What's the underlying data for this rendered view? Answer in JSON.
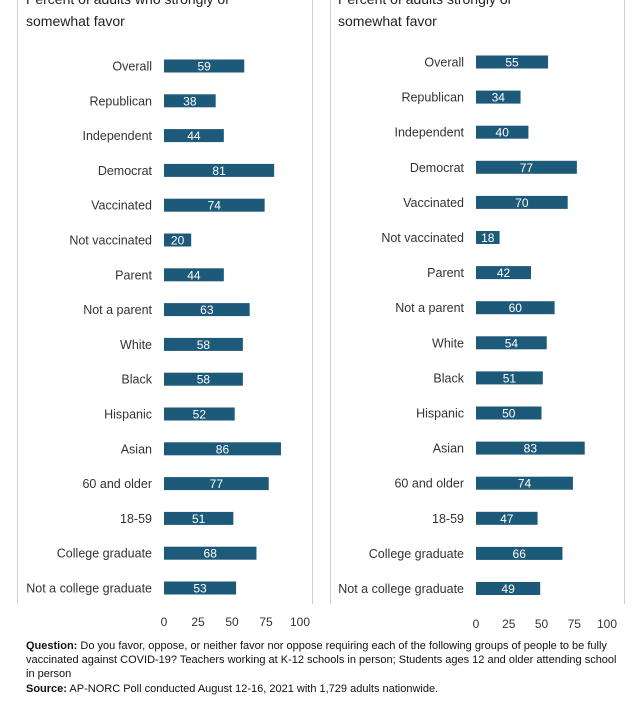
{
  "chart_data": [
    {
      "type": "bar",
      "orientation": "horizontal",
      "subtitle": "Percent of adults who strongly or somewhat favor",
      "categories": [
        "Overall",
        "Republican",
        "Independent",
        "Democrat",
        "Vaccinated",
        "Not vaccinated",
        "Parent",
        "Not a parent",
        "White",
        "Black",
        "Hispanic",
        "Asian",
        "60 and older",
        "18-59",
        "College graduate",
        "Not a college graduate"
      ],
      "values": [
        59,
        38,
        44,
        81,
        74,
        20,
        44,
        63,
        58,
        58,
        52,
        86,
        77,
        51,
        68,
        53
      ],
      "xlim": [
        0,
        100
      ],
      "xticks": [
        "0",
        "25",
        "50",
        "75",
        "100"
      ],
      "bar_color": "#1d5a7a",
      "grid": false
    },
    {
      "type": "bar",
      "orientation": "horizontal",
      "subtitle": "Percent of adults strongly or somewhat favor",
      "categories": [
        "Overall",
        "Republican",
        "Independent",
        "Democrat",
        "Vaccinated",
        "Not vaccinated",
        "Parent",
        "Not a parent",
        "White",
        "Black",
        "Hispanic",
        "Asian",
        "60 and older",
        "18-59",
        "College graduate",
        "Not a college graduate"
      ],
      "values": [
        55,
        34,
        40,
        77,
        70,
        18,
        42,
        60,
        54,
        51,
        50,
        83,
        74,
        47,
        66,
        49
      ],
      "xlim": [
        0,
        100
      ],
      "xticks": [
        "0",
        "25",
        "50",
        "75",
        "100"
      ],
      "bar_color": "#1d5a7a",
      "grid": false
    }
  ],
  "footer": {
    "question_label": "Question:",
    "question_text": "Do you favor, oppose, or neither favor nor oppose requiring each of the following groups of people to be fully vaccinated against COVID-19? Teachers working at K-12 schools in person; Students ages 12 and older attending school in person",
    "source_label": "Source:",
    "source_text": "AP-NORC Poll conducted August 12-16, 2021 with 1,729 adults nationwide."
  }
}
